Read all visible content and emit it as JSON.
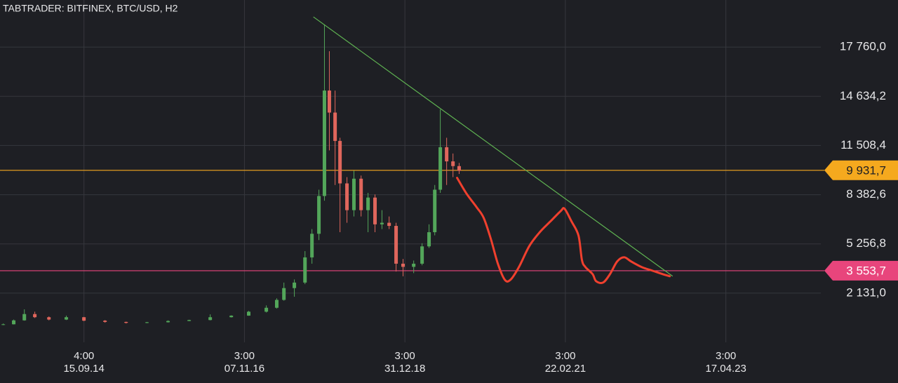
{
  "chart_data": {
    "type": "candlestick",
    "title": "TABTRADER: BITFINEX, BTC/USD, H2",
    "x": [
      "2013-08-17",
      "2013-10-07",
      "2013-11-28",
      "2014-01-18",
      "2014-03-28",
      "2014-06-21",
      "2014-09-15",
      "2014-12-27",
      "2015-04-09",
      "2015-07-20",
      "2015-10-31",
      "2016-02-11",
      "2016-05-24",
      "2016-09-04",
      "2016-11-28",
      "2017-02-22",
      "2017-04-14",
      "2017-05-19",
      "2017-07-09",
      "2017-08-30",
      "2017-10-03",
      "2017-11-06",
      "2017-12-03",
      "2017-12-27",
      "2018-01-24",
      "2018-02-17",
      "2018-03-23",
      "2018-04-26",
      "2018-05-31",
      "2018-07-04",
      "2018-08-07",
      "2018-09-10",
      "2018-10-15",
      "2018-11-18",
      "2018-12-22",
      "2019-02-12",
      "2019-03-25",
      "2019-04-28",
      "2019-05-26",
      "2019-06-22",
      "2019-07-23",
      "2019-08-23",
      "2019-09-22"
    ],
    "open": [
      120,
      150,
      400,
      800,
      600,
      450,
      600,
      380,
      300,
      240,
      280,
      360,
      420,
      600,
      700,
      950,
      1200,
      1700,
      2450,
      2800,
      4400,
      5900,
      8300,
      15000,
      13600,
      11800,
      9100,
      7400,
      9400,
      7400,
      8200,
      6500,
      6600,
      6400,
      4000,
      3800,
      4000,
      5100,
      6000,
      8700,
      11400,
      10500,
      10200
    ],
    "high": [
      200,
      450,
      1100,
      950,
      650,
      700,
      620,
      420,
      320,
      300,
      400,
      440,
      780,
      720,
      1000,
      1350,
      1800,
      2800,
      3000,
      4800,
      6200,
      8700,
      19200,
      17500,
      15000,
      12000,
      9500,
      9900,
      9600,
      8500,
      8400,
      7400,
      7000,
      6600,
      4300,
      4200,
      5300,
      6500,
      9000,
      13800,
      12000,
      11000,
      10400
    ],
    "low": [
      100,
      140,
      380,
      550,
      400,
      420,
      350,
      250,
      200,
      220,
      260,
      350,
      400,
      580,
      690,
      900,
      1150,
      1650,
      1900,
      2700,
      4000,
      5500,
      8000,
      11200,
      9000,
      6000,
      6600,
      7000,
      7000,
      6000,
      6000,
      6200,
      6200,
      3500,
      3200,
      3400,
      3900,
      5000,
      5800,
      8500,
      9000,
      9500,
      9700
    ],
    "close": [
      150,
      400,
      800,
      600,
      450,
      600,
      380,
      300,
      240,
      280,
      360,
      420,
      600,
      700,
      950,
      1200,
      1700,
      2450,
      2800,
      4400,
      5900,
      8300,
      15000,
      13600,
      11800,
      9100,
      7400,
      9400,
      7400,
      8200,
      6500,
      6600,
      6400,
      4000,
      3800,
      4000,
      5100,
      6000,
      8700,
      11400,
      10500,
      10200,
      9900
    ],
    "up_color": "#53a65a",
    "down_color": "#e0665c",
    "projection": {
      "color": "#f0402e",
      "x": [
        "2019-09-12",
        "2019-10-27",
        "2019-12-17",
        "2020-01-20",
        "2020-02-24",
        "2020-03-29",
        "2020-05-02",
        "2020-05-30",
        "2020-07-10",
        "2020-08-30",
        "2020-10-21",
        "2020-12-11",
        "2021-01-31",
        "2021-02-18",
        "2021-03-24",
        "2021-04-27",
        "2021-05-14",
        "2021-05-31",
        "2021-07-05",
        "2021-07-22",
        "2021-08-25",
        "2021-09-28",
        "2021-11-02",
        "2021-12-06",
        "2022-01-09",
        "2022-03-02",
        "2022-04-22",
        "2022-06-12",
        "2022-07-17"
      ],
      "values": [
        9455,
        8473,
        7580,
        6910,
        5571,
        4008,
        2981,
        2981,
        3785,
        5124,
        6017,
        6687,
        7357,
        7491,
        6687,
        5794,
        4231,
        3785,
        3338,
        2892,
        2802,
        3338,
        4142,
        4410,
        4142,
        3785,
        3562,
        3338,
        3204
      ]
    },
    "trendline": {
      "color": "#5fb352",
      "x": [
        "2017-10-10",
        "2022-07-31"
      ],
      "values": [
        19680,
        3204
      ]
    },
    "price_lines": [
      {
        "value": 9931.7,
        "label": "9 931,7",
        "color": "#f5a91e",
        "text_color": "#1e1f24"
      },
      {
        "value": 3553.7,
        "label": "3 553,7",
        "color": "#e8457c",
        "text_color": "#ffffff"
      }
    ],
    "xlim": [
      "2013-08-01",
      "2024-07-24"
    ],
    "xticks": [
      {
        "value": "2014-09-15T04:00",
        "label": "4:00",
        "date": "15.09.14"
      },
      {
        "value": "2016-11-07T03:00",
        "label": "3:00",
        "date": "07.11.16"
      },
      {
        "value": "2018-12-31T03:00",
        "label": "3:00",
        "date": "31.12.18"
      },
      {
        "value": "2021-02-22T03:00",
        "label": "3:00",
        "date": "22.02.21"
      },
      {
        "value": "2023-04-17T03:00",
        "label": "3:00",
        "date": "17.04.23"
      }
    ],
    "ylim": [
      -995,
      20752
    ],
    "yticks": [
      {
        "value": 17760,
        "label": "17 760,0"
      },
      {
        "value": 14634.2,
        "label": "14 634,2"
      },
      {
        "value": 11508.4,
        "label": "11 508,4"
      },
      {
        "value": 8382.6,
        "label": "8 382,6"
      },
      {
        "value": 5256.8,
        "label": "5 256,8"
      },
      {
        "value": 2131,
        "label": "2 131,0"
      }
    ],
    "grid": true
  }
}
